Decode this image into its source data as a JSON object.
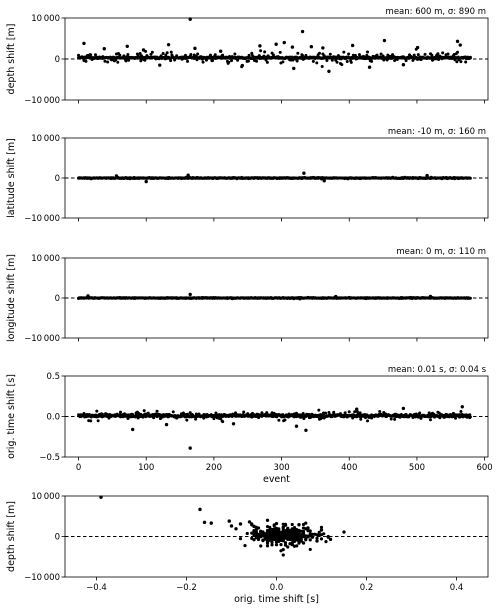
{
  "chart_data": [
    {
      "type": "scatter",
      "panel": "depth-event",
      "ylabel": "depth shift [m]",
      "xlabel": "",
      "annotation": "mean:   600 m, σ:   890 m",
      "xlim": [
        -20,
        605
      ],
      "ylim": [
        -10000,
        10000
      ],
      "yticks": [
        -10000,
        0,
        10000
      ],
      "ytick_labels": [
        "−10 000",
        "0",
        "10 000"
      ],
      "xticks": [
        0,
        100,
        200,
        300,
        400,
        500,
        600
      ],
      "show_xtick_labels": false,
      "zero_line": "dashed",
      "cap_line": 10000,
      "n_events": 580,
      "base_value": 300,
      "noise": 900,
      "band_halfwidth": 180,
      "outliers": [
        {
          "x": 165,
          "y": 9700
        },
        {
          "x": 331,
          "y": 6700
        },
        {
          "x": 8,
          "y": 3800
        },
        {
          "x": 38,
          "y": 2500
        },
        {
          "x": 72,
          "y": 3100
        },
        {
          "x": 96,
          "y": 2200
        },
        {
          "x": 133,
          "y": 3500
        },
        {
          "x": 172,
          "y": 2600
        },
        {
          "x": 210,
          "y": 1900
        },
        {
          "x": 268,
          "y": 3200
        },
        {
          "x": 292,
          "y": 3600
        },
        {
          "x": 304,
          "y": 4000
        },
        {
          "x": 316,
          "y": 2900
        },
        {
          "x": 344,
          "y": 3000
        },
        {
          "x": 361,
          "y": 2700
        },
        {
          "x": 405,
          "y": 3300
        },
        {
          "x": 452,
          "y": 4500
        },
        {
          "x": 501,
          "y": 2800
        },
        {
          "x": 560,
          "y": 4300
        },
        {
          "x": 564,
          "y": 3400
        },
        {
          "x": 370,
          "y": -3000
        },
        {
          "x": 318,
          "y": -2300
        },
        {
          "x": 242,
          "y": -1600
        },
        {
          "x": 120,
          "y": -1500
        },
        {
          "x": 430,
          "y": -2000
        },
        {
          "x": 480,
          "y": -1400
        }
      ]
    },
    {
      "type": "scatter",
      "panel": "latitude-event",
      "ylabel": "latitude shift [m]",
      "xlabel": "",
      "annotation": "mean:   -10 m, σ:   160 m",
      "xlim": [
        -20,
        605
      ],
      "ylim": [
        -10000,
        10000
      ],
      "yticks": [
        -10000,
        0,
        10000
      ],
      "ytick_labels": [
        "−10 000",
        "0",
        "10 000"
      ],
      "xticks": [
        0,
        100,
        200,
        300,
        400,
        500,
        600
      ],
      "show_xtick_labels": false,
      "zero_line": "dashed",
      "n_events": 580,
      "base_value": -10,
      "noise": 120,
      "band_halfwidth": 90,
      "outliers": [
        {
          "x": 333,
          "y": 1200
        },
        {
          "x": 100,
          "y": -900
        },
        {
          "x": 363,
          "y": -700
        },
        {
          "x": 162,
          "y": 700
        },
        {
          "x": 515,
          "y": 600
        },
        {
          "x": 56,
          "y": 500
        }
      ]
    },
    {
      "type": "scatter",
      "panel": "longitude-event",
      "ylabel": "longitude shift [m]",
      "xlabel": "",
      "annotation": "mean:     0 m, σ:   110 m",
      "xlim": [
        -20,
        605
      ],
      "ylim": [
        -10000,
        10000
      ],
      "yticks": [
        -10000,
        0,
        10000
      ],
      "ytick_labels": [
        "−10 000",
        "0",
        "10 000"
      ],
      "xticks": [
        0,
        100,
        200,
        300,
        400,
        500,
        600
      ],
      "show_xtick_labels": false,
      "zero_line": "dashed",
      "n_events": 580,
      "base_value": 0,
      "noise": 90,
      "band_halfwidth": 80,
      "outliers": [
        {
          "x": 165,
          "y": 900
        },
        {
          "x": 520,
          "y": 400
        },
        {
          "x": 14,
          "y": 500
        },
        {
          "x": 380,
          "y": 350
        }
      ]
    },
    {
      "type": "scatter",
      "panel": "time-event",
      "ylabel": "orig. time shift [s]",
      "xlabel": "event",
      "annotation": "mean: 0.01 s, σ: 0.04 s",
      "xlim": [
        -20,
        605
      ],
      "ylim": [
        -0.5,
        0.5
      ],
      "yticks": [
        -0.5,
        0.0,
        0.5
      ],
      "ytick_labels": [
        "−0.5",
        "0.0",
        "0.5"
      ],
      "xticks": [
        0,
        100,
        200,
        300,
        400,
        500,
        600
      ],
      "xtick_labels": [
        "0",
        "100",
        "200",
        "300",
        "400",
        "500",
        "600"
      ],
      "show_xtick_labels": true,
      "zero_line": "dashed",
      "n_events": 580,
      "base_value": 0.01,
      "noise": 0.035,
      "band_halfwidth": 0.015,
      "outliers": [
        {
          "x": 165,
          "y": -0.39
        },
        {
          "x": 80,
          "y": -0.16
        },
        {
          "x": 336,
          "y": -0.17
        },
        {
          "x": 322,
          "y": -0.12
        },
        {
          "x": 130,
          "y": -0.1
        },
        {
          "x": 480,
          "y": 0.1
        },
        {
          "x": 567,
          "y": 0.12
        },
        {
          "x": 229,
          "y": -0.09
        },
        {
          "x": 411,
          "y": 0.09
        }
      ]
    },
    {
      "type": "scatter",
      "panel": "depth-vs-time",
      "ylabel": "depth shift [m]",
      "xlabel": "orig. time shift [s]",
      "annotation": "",
      "xlim": [
        -0.47,
        0.47
      ],
      "ylim": [
        -10000,
        10000
      ],
      "yticks": [
        -10000,
        0,
        10000
      ],
      "ytick_labels": [
        "−10 000",
        "0",
        "10 000"
      ],
      "xticks": [
        -0.4,
        -0.2,
        0.0,
        0.2,
        0.4
      ],
      "xtick_labels": [
        "−0.4",
        "−0.2",
        "0.0",
        "0.2",
        "0.4"
      ],
      "show_xtick_labels": true,
      "zero_line": "dashed",
      "points": [
        {
          "x": -0.39,
          "y": 9700
        },
        {
          "x": -0.17,
          "y": 6700
        },
        {
          "x": -0.16,
          "y": 3500
        },
        {
          "x": -0.145,
          "y": 3300
        },
        {
          "x": -0.105,
          "y": 3800
        },
        {
          "x": -0.1,
          "y": 2600
        },
        {
          "x": -0.08,
          "y": 3100
        },
        {
          "x": -0.06,
          "y": 3600
        },
        {
          "x": -0.05,
          "y": 2500
        },
        {
          "x": -0.02,
          "y": 4000
        },
        {
          "x": 0.0,
          "y": 3200
        },
        {
          "x": 0.02,
          "y": 2800
        },
        {
          "x": 0.05,
          "y": 2900
        },
        {
          "x": 0.07,
          "y": 2100
        },
        {
          "x": 0.1,
          "y": 1600
        },
        {
          "x": 0.15,
          "y": 1100
        },
        {
          "x": -0.09,
          "y": 1900
        },
        {
          "x": 0.09,
          "y": -1100
        },
        {
          "x": 0.06,
          "y": -1600
        },
        {
          "x": 0.035,
          "y": -2000
        },
        {
          "x": -0.03,
          "y": -900
        },
        {
          "x": 0.12,
          "y": -700
        }
      ],
      "cluster": {
        "x_center": 0.012,
        "x_spread": 0.035,
        "y_center": 300,
        "y_spread": 900,
        "count": 380
      }
    }
  ]
}
